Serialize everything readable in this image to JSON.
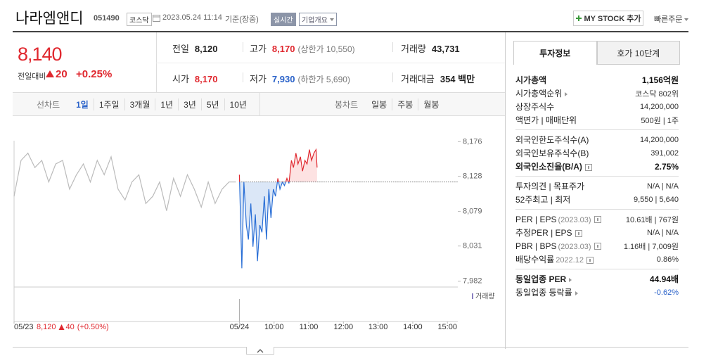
{
  "header": {
    "title": "나라엠앤디",
    "code": "051490",
    "market": "코스닥",
    "datetime": "2023.05.24 11:14",
    "basis": "기준(장중)",
    "realtime": "실시간",
    "company_info": "기업개요",
    "my_stock": "MY STOCK 추가",
    "quick_order": "빠른주문"
  },
  "price": {
    "current": "8,140",
    "change_label": "전일대비",
    "change": "20",
    "change_pct": "+0.25%"
  },
  "summary": [
    [
      {
        "label": "전일",
        "value": "8,120"
      },
      {
        "label": "고가",
        "value": "8,170",
        "note": "(상한가 10,550)",
        "color": "#e0282f"
      },
      {
        "label": "거래량",
        "value": "43,731"
      }
    ],
    [
      {
        "label": "시가",
        "value": "8,170",
        "color": "#e0282f"
      },
      {
        "label": "저가",
        "value": "7,930",
        "note": "(하한가 5,690)",
        "color": "#2a62c9"
      },
      {
        "label": "거래대금",
        "value": "354 백만"
      }
    ]
  ],
  "chart_tabs": {
    "line_label": "선차트",
    "line_periods": [
      "1일",
      "1주일",
      "3개월",
      "1년",
      "3년",
      "5년",
      "10년"
    ],
    "selected": 0,
    "candle_label": "봉차트",
    "candle_periods": [
      "일봉",
      "주봉",
      "월봉"
    ]
  },
  "chart": {
    "type": "line",
    "ylim": [
      7974,
      8192
    ],
    "yticks": [
      {
        "value": 8176,
        "label": "8,176"
      },
      {
        "value": 8128,
        "label": "8,128"
      },
      {
        "value": 8079,
        "label": "8,079"
      },
      {
        "value": 8031,
        "label": "8,031"
      },
      {
        "value": 7982,
        "label": "7,982"
      }
    ],
    "xlim": [
      0,
      12.8
    ],
    "xticks": [
      {
        "value": 0,
        "label": "05/23"
      },
      {
        "value": 6.5,
        "label": "05/24"
      },
      {
        "value": 7.5,
        "label": "10:00"
      },
      {
        "value": 8.5,
        "label": "11:00"
      },
      {
        "value": 9.5,
        "label": "12:00"
      },
      {
        "value": 10.5,
        "label": "13:00"
      },
      {
        "value": 11.5,
        "label": "14:00"
      },
      {
        "value": 12.5,
        "label": "15:00"
      }
    ],
    "prev_close": 8120,
    "prev_summary": {
      "close": "8,120",
      "change": "40",
      "change_pct": "(+0.50%)"
    },
    "volume_label": "거래량",
    "series": [
      {
        "color": "#bbbbbb",
        "x": [
          0,
          0.2,
          0.4,
          0.6,
          0.8,
          1.0,
          1.2,
          1.4,
          1.6,
          1.8,
          2.0,
          2.2,
          2.4,
          2.6,
          2.8,
          3.0,
          3.2,
          3.4,
          3.6,
          3.8,
          4.0,
          4.2,
          4.4,
          4.6,
          4.8,
          5.0,
          5.2,
          5.4,
          5.6,
          5.8,
          6.0,
          6.2,
          6.4
        ],
        "values": [
          8100,
          8150,
          8160,
          8140,
          8150,
          8120,
          8145,
          8150,
          8110,
          8130,
          8145,
          8120,
          8150,
          8130,
          8155,
          8110,
          8095,
          8120,
          8130,
          8090,
          8100,
          8120,
          8080,
          8125,
          8100,
          8130,
          8110,
          8085,
          8120,
          8090,
          8110,
          8120,
          8120
        ]
      },
      {
        "color_up": "#e0282f",
        "color_down": "#2a6fd6",
        "fill_up": "#fde2e2",
        "fill_down": "#dbe7f7",
        "x": [
          6.5,
          6.57,
          6.63,
          6.7,
          6.76,
          6.83,
          6.89,
          6.96,
          7.02,
          7.09,
          7.15,
          7.22,
          7.28,
          7.35,
          7.41,
          7.48,
          7.54,
          7.61,
          7.67,
          7.74,
          7.8,
          7.87,
          7.93,
          8.0,
          8.06,
          8.13,
          8.19,
          8.26,
          8.32,
          8.39,
          8.45,
          8.52,
          8.58,
          8.65,
          8.71,
          8.74
        ],
        "values": [
          8130,
          8000,
          8120,
          8060,
          8040,
          8090,
          8030,
          8075,
          8010,
          8060,
          8050,
          8100,
          8040,
          8110,
          8070,
          8110,
          8100,
          8125,
          8110,
          8120,
          8115,
          8125,
          8118,
          8150,
          8140,
          8160,
          8145,
          8155,
          8135,
          8150,
          8145,
          8165,
          8150,
          8160,
          8165,
          8140
        ]
      }
    ]
  },
  "info_tabs": [
    "투자정보",
    "호가 10단계"
  ],
  "info_selected": 0,
  "info_groups": [
    [
      {
        "label": "시가총액",
        "value": "1,156억원",
        "bold": true
      },
      {
        "label": "시가총액순위",
        "arrow": true,
        "value": "코스닥 802위"
      },
      {
        "label": "상장주식수",
        "value": "14,200,000"
      },
      {
        "label": "액면가 | 매매단위",
        "value": "500원 | 1주"
      }
    ],
    [
      {
        "label": "외국인한도주식수(A)",
        "value": "14,200,000"
      },
      {
        "label": "외국인보유주식수(B)",
        "value": "391,002"
      },
      {
        "label": "외국인소진율(B/A)",
        "help": true,
        "value": "2.75%",
        "bold": true
      }
    ],
    [
      {
        "label": "투자의견 | 목표주가",
        "value": "N/A | N/A"
      },
      {
        "label": "52주최고 | 최저",
        "value": "9,550 | 5,640"
      }
    ],
    [
      {
        "label": "PER | EPS",
        "note": "(2023.03)",
        "help": true,
        "value": "10.61배 | 767원"
      },
      {
        "label": "추정PER | EPS",
        "help": true,
        "value": "N/A | N/A"
      },
      {
        "label": "PBR | BPS",
        "note": "(2023.03)",
        "help": true,
        "value": "1.16배 | 7,009원"
      },
      {
        "label": "배당수익률",
        "note": "2022.12",
        "help": true,
        "value": "0.86%"
      }
    ],
    [
      {
        "label": "동일업종 PER",
        "arrow": true,
        "value": "44.94배",
        "bold": true
      },
      {
        "label": "동일업종 등락률",
        "arrow": true,
        "value": "-0.62%",
        "color": "#2a62c9"
      }
    ]
  ]
}
